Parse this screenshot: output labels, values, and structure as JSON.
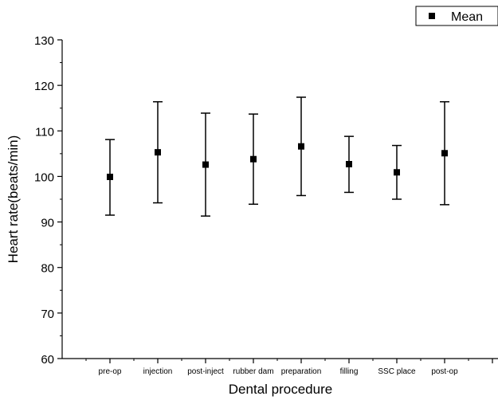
{
  "chart_data": {
    "type": "scatter",
    "title": "",
    "xlabel": "Dental procedure",
    "ylabel": "Heart rate(beats/min)",
    "categories": [
      "pre-op",
      "injection",
      "post-inject",
      "rubber dam",
      "preparation",
      "filling",
      "SSC place",
      "post-op"
    ],
    "series": [
      {
        "name": "Mean",
        "marker": "square",
        "values": [
          99.9,
          105.3,
          102.6,
          103.8,
          106.6,
          102.7,
          100.9,
          105.1
        ],
        "error_low": [
          91.5,
          94.2,
          91.3,
          93.9,
          95.8,
          96.5,
          95.0,
          93.8
        ],
        "error_high": [
          108.1,
          116.4,
          113.9,
          113.7,
          117.4,
          108.8,
          106.8,
          116.4
        ]
      }
    ],
    "ylim": [
      60,
      130
    ],
    "yticks": [
      60,
      70,
      80,
      90,
      100,
      110,
      120,
      130
    ],
    "grid": false,
    "legend_position": "top-right",
    "colors": {
      "marker": "#000000",
      "axis": "#000000"
    }
  }
}
